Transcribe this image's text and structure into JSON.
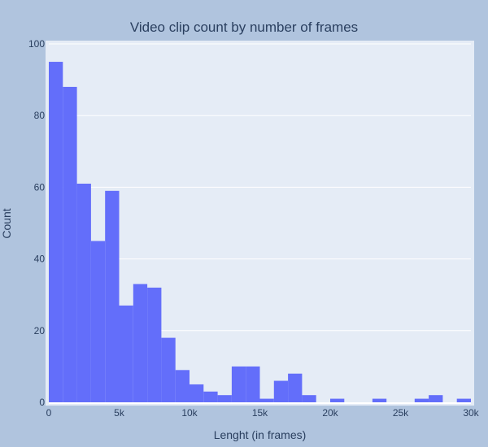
{
  "chart_data": {
    "type": "bar",
    "title": "Video clip count by number of frames",
    "xlabel": "Lenght (in frames)",
    "ylabel": "Count",
    "xlim": [
      0,
      30000
    ],
    "ylim": [
      0,
      100
    ],
    "bin_width": 1000,
    "x_ticks": [
      0,
      5000,
      10000,
      15000,
      20000,
      25000,
      30000
    ],
    "x_tick_labels": [
      "0",
      "5k",
      "10k",
      "15k",
      "20k",
      "25k",
      "30k"
    ],
    "y_ticks": [
      0,
      20,
      40,
      60,
      80,
      100
    ],
    "y_tick_labels": [
      "0",
      "20",
      "40",
      "60",
      "80",
      "100"
    ],
    "bins": [
      {
        "x0": 0,
        "x1": 1000,
        "count": 95
      },
      {
        "x0": 1000,
        "x1": 2000,
        "count": 88
      },
      {
        "x0": 2000,
        "x1": 3000,
        "count": 61
      },
      {
        "x0": 3000,
        "x1": 4000,
        "count": 45
      },
      {
        "x0": 4000,
        "x1": 5000,
        "count": 59
      },
      {
        "x0": 5000,
        "x1": 6000,
        "count": 27
      },
      {
        "x0": 6000,
        "x1": 7000,
        "count": 33
      },
      {
        "x0": 7000,
        "x1": 8000,
        "count": 32
      },
      {
        "x0": 8000,
        "x1": 9000,
        "count": 18
      },
      {
        "x0": 9000,
        "x1": 10000,
        "count": 9
      },
      {
        "x0": 10000,
        "x1": 11000,
        "count": 5
      },
      {
        "x0": 11000,
        "x1": 12000,
        "count": 3
      },
      {
        "x0": 12000,
        "x1": 13000,
        "count": 2
      },
      {
        "x0": 13000,
        "x1": 14000,
        "count": 10
      },
      {
        "x0": 14000,
        "x1": 15000,
        "count": 10
      },
      {
        "x0": 15000,
        "x1": 16000,
        "count": 1
      },
      {
        "x0": 16000,
        "x1": 17000,
        "count": 6
      },
      {
        "x0": 17000,
        "x1": 18000,
        "count": 8
      },
      {
        "x0": 18000,
        "x1": 19000,
        "count": 2
      },
      {
        "x0": 19000,
        "x1": 20000,
        "count": 0
      },
      {
        "x0": 20000,
        "x1": 21000,
        "count": 1
      },
      {
        "x0": 21000,
        "x1": 22000,
        "count": 0
      },
      {
        "x0": 22000,
        "x1": 23000,
        "count": 0
      },
      {
        "x0": 23000,
        "x1": 24000,
        "count": 1
      },
      {
        "x0": 24000,
        "x1": 25000,
        "count": 0
      },
      {
        "x0": 25000,
        "x1": 26000,
        "count": 0
      },
      {
        "x0": 26000,
        "x1": 27000,
        "count": 1
      },
      {
        "x0": 27000,
        "x1": 28000,
        "count": 2
      },
      {
        "x0": 28000,
        "x1": 29000,
        "count": 0
      },
      {
        "x0": 29000,
        "x1": 30000,
        "count": 1
      }
    ],
    "grid": true,
    "colors": {
      "bar": "#636efa",
      "plot_bg": "#e5ecf6",
      "paper_bg": "#b0c4de",
      "grid": "#ffffff",
      "text": "#2a3f5f"
    }
  }
}
